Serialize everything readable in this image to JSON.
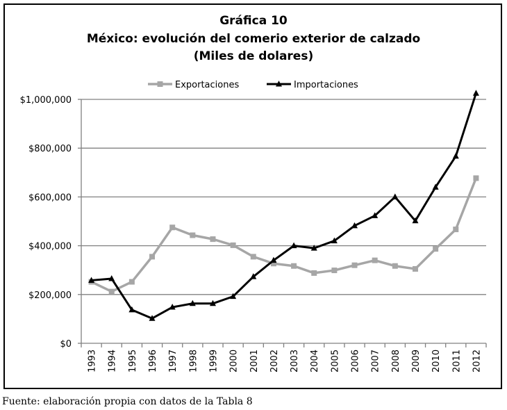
{
  "chart_data": {
    "type": "line",
    "title": "Gráfica 10",
    "subtitle": "México: evolución del comerio exterior de calzado",
    "unit_label": "(Miles de dolares)",
    "categories": [
      "1993",
      "1994",
      "1995",
      "1996",
      "1997",
      "1998",
      "1999",
      "2000",
      "2001",
      "2002",
      "2003",
      "2004",
      "2005",
      "2006",
      "2007",
      "2008",
      "2009",
      "2010",
      "2011",
      "2012"
    ],
    "series": [
      {
        "name": "Exportaciones",
        "color": "#a6a6a6",
        "marker": "square",
        "values": [
          252000,
          212000,
          252000,
          355000,
          475000,
          443000,
          427000,
          402000,
          355000,
          327000,
          317000,
          288000,
          299000,
          320000,
          340000,
          317000,
          305000,
          387000,
          467000,
          677000
        ]
      },
      {
        "name": "Importaciones",
        "color": "#000000",
        "marker": "triangle",
        "values": [
          258000,
          265000,
          137000,
          102000,
          148000,
          163000,
          163000,
          192000,
          273000,
          340000,
          400000,
          390000,
          420000,
          482000,
          523000,
          600000,
          502000,
          640000,
          767000,
          1025000
        ]
      }
    ],
    "ylim": [
      0,
      1000000
    ],
    "yticks": [
      0,
      200000,
      400000,
      600000,
      800000,
      1000000
    ],
    "ytick_labels": [
      "$0",
      "$200,000",
      "$400,000",
      "$600,000",
      "$800,000",
      "$1,000,000"
    ],
    "grid": true,
    "legend_position": "top-center",
    "xlabel": "",
    "ylabel": ""
  },
  "footnote": "Fuente: elaboración propia con datos de la Tabla 8"
}
